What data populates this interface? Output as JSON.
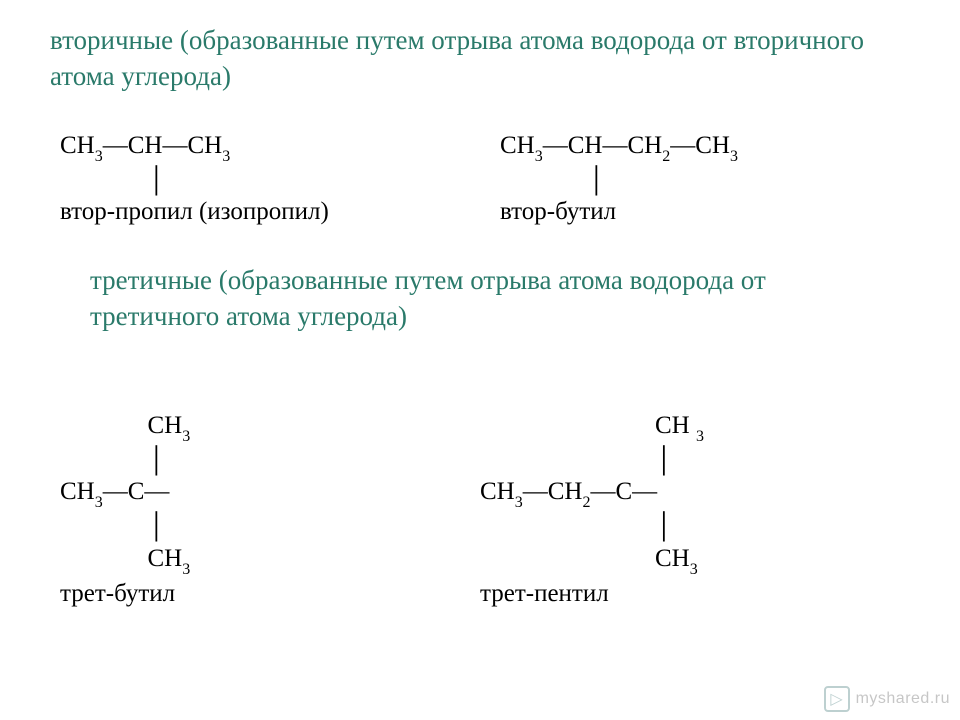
{
  "headings": {
    "secondary": "вторичные (образованные путем отрыва атома водорода от вторичного атома углерода)",
    "tertiary": "третичные (образованные путем отрыва атома водорода от третичного атома углерода)"
  },
  "colors": {
    "heading": "#2a7a6a",
    "text": "#000000",
    "background": "#ffffff"
  },
  "fontsizes": {
    "heading": 27,
    "formula": 25,
    "subscript": 16
  },
  "formulas": {
    "sec_propyl": {
      "chain_parts": [
        "CH",
        "3",
        "—CH—CH",
        "3"
      ],
      "bond_indent_ch": 7,
      "name": "втор-пропил (изопропил)"
    },
    "sec_butyl": {
      "chain_parts": [
        "CH",
        "3",
        "—CH—CH",
        "2",
        "—CH",
        "3"
      ],
      "bond_indent_ch": 7,
      "name": "втор-бутил"
    },
    "tert_butyl": {
      "top_parts": [
        "CH",
        "3"
      ],
      "top_indent_ch": 7,
      "bond_indent_ch": 7,
      "mid_parts": [
        "CH",
        "3",
        "—C—"
      ],
      "bot_parts": [
        "CH",
        "3"
      ],
      "bot_indent_ch": 7,
      "name": "трет-бутил"
    },
    "tert_pentyl": {
      "top_parts": [
        "CH ",
        "3"
      ],
      "top_indent_ch": 14,
      "bond_indent_ch": 14,
      "mid_parts": [
        "CH",
        "3",
        "—CH",
        "2",
        "—C—"
      ],
      "bot_parts": [
        "CH",
        "3"
      ],
      "bot_indent_ch": 14,
      "name": "трет-пентил"
    }
  },
  "watermark": {
    "icon_glyph": "▷",
    "text": "myshared.ru"
  }
}
